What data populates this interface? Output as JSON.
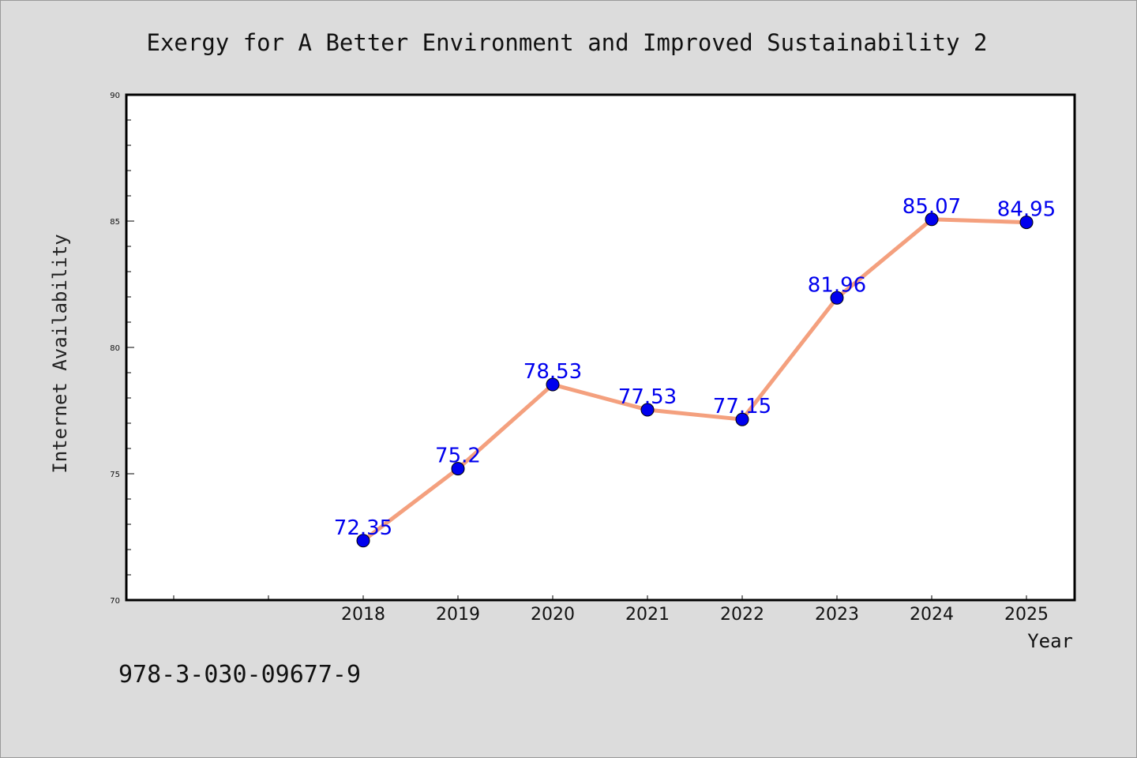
{
  "chart_data": {
    "type": "line",
    "title": "Exergy for A Better Environment and Improved Sustainability 2",
    "xlabel": "Year",
    "ylabel": "Internet Availability",
    "categories": [
      "2018",
      "2019",
      "2020",
      "2021",
      "2022",
      "2023",
      "2024",
      "2025"
    ],
    "series": [
      {
        "values": [
          72.35,
          75.2,
          78.53,
          77.53,
          77.15,
          81.96,
          85.07,
          84.95
        ],
        "data_labels": [
          "72.35",
          "75.2",
          "78.53",
          "77.53",
          "77.15",
          "81.96",
          "85.07",
          "84.95"
        ]
      }
    ],
    "ylim": [
      70,
      90
    ],
    "yticks": [
      70,
      75,
      80,
      85,
      90
    ],
    "ytick_labels": [
      "70",
      "75",
      "80",
      "85",
      "90"
    ],
    "grid": false,
    "line_color": "#f4a07e",
    "marker_color": "#0000ee",
    "label_color": "#0000ee",
    "background": "#dcdcdc",
    "plot_background": "#ffffff"
  },
  "footer": {
    "isbn": "978-3-030-09677-9"
  }
}
